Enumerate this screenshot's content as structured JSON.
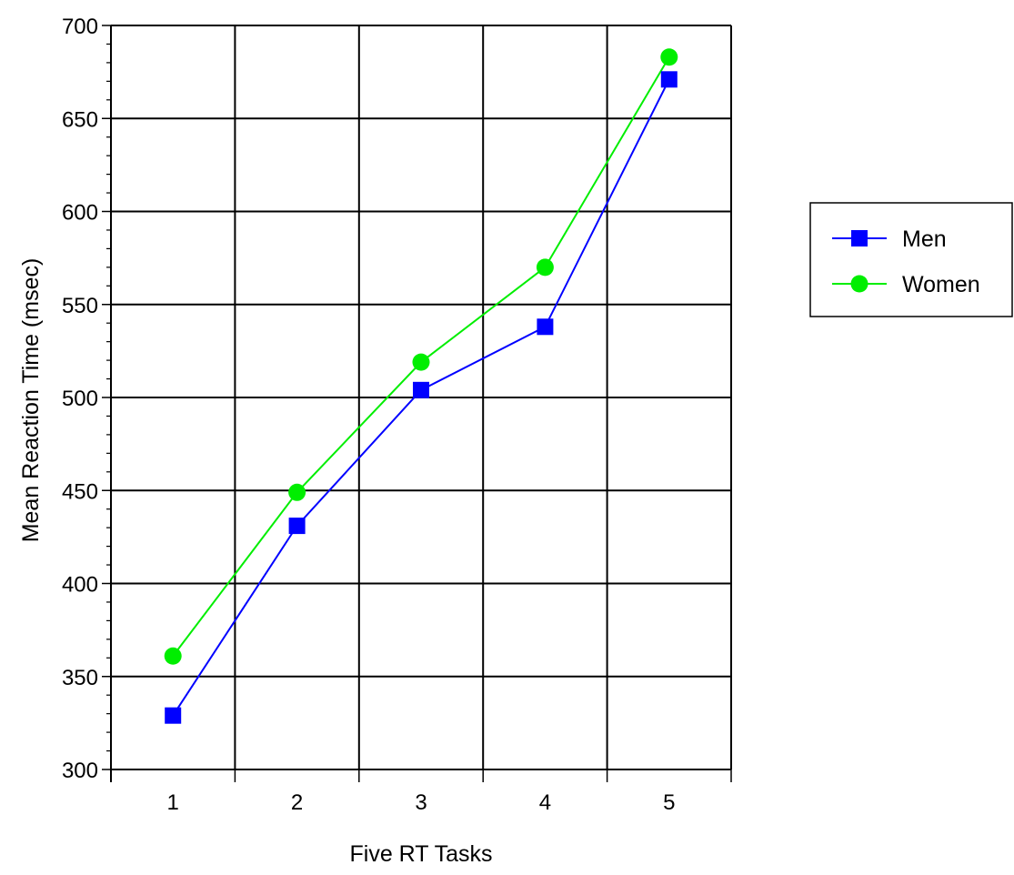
{
  "chart_data": {
    "type": "line",
    "xlabel": "Five RT Tasks",
    "ylabel": "Mean Reaction Time (msec)",
    "categories": [
      "1",
      "2",
      "3",
      "4",
      "5"
    ],
    "ylim": [
      300,
      700
    ],
    "yticks": [
      "300",
      "350",
      "400",
      "450",
      "500",
      "550",
      "600",
      "650",
      "700"
    ],
    "grid": true,
    "legend_position": "right",
    "series": [
      {
        "name": "Men",
        "marker": "square",
        "color": "#0000ff",
        "values": [
          329,
          431,
          504,
          538,
          671
        ]
      },
      {
        "name": "Women",
        "marker": "circle",
        "color": "#00ee00",
        "values": [
          361,
          449,
          519,
          570,
          683
        ]
      }
    ]
  }
}
